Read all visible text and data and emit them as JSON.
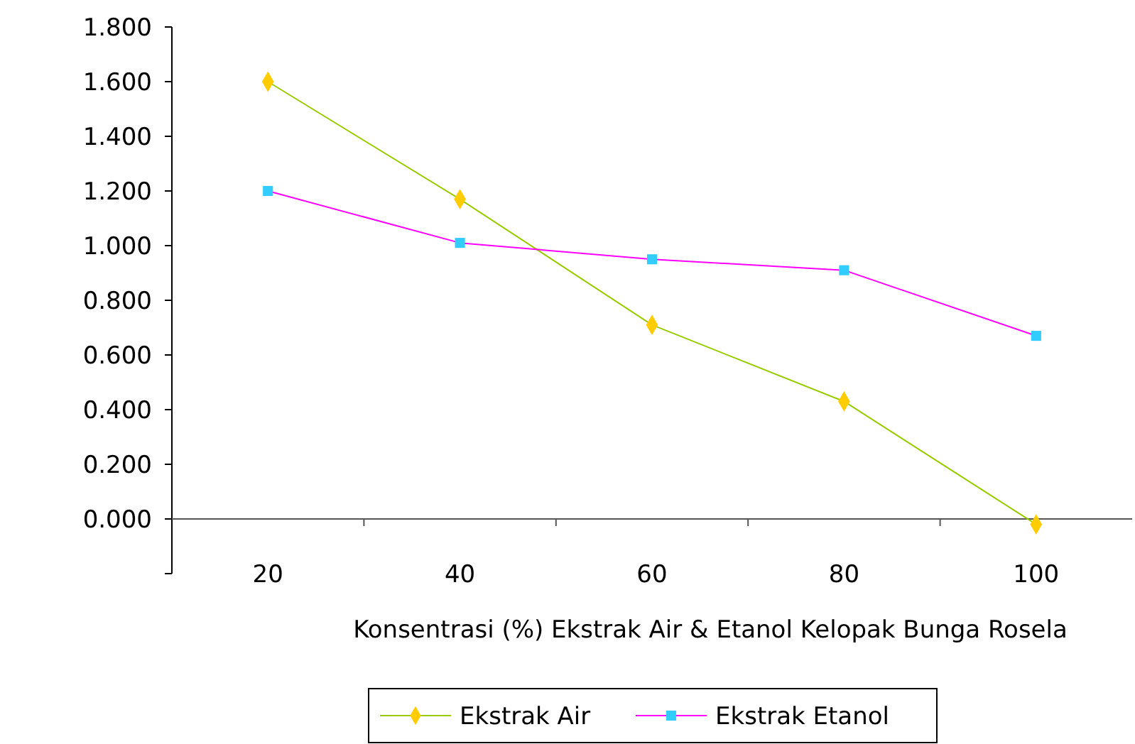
{
  "chart_data": {
    "type": "line",
    "xlabel": "Konsentrasi (%)  Ekstrak Air & Etanol Kelopak Bunga Rosela",
    "categories": [
      "20",
      "40",
      "60",
      "80",
      "100"
    ],
    "series": [
      {
        "name": "Ekstrak Air",
        "color": "#99cc00",
        "colors": [
          "#ffcc00",
          "#ffcc00",
          "#ffcc00",
          "#ffcc00",
          "#ffcc00"
        ],
        "marker": "diamond",
        "values": [
          1.6,
          1.17,
          0.71,
          0.43,
          -0.02
        ]
      },
      {
        "name": "Ekstrak Etanol",
        "color": "#ff00ff",
        "colors": [
          "#33ccff",
          "#33ccff",
          "#33ccff",
          "#33ccff",
          "#33ccff"
        ],
        "marker": "square",
        "values": [
          1.2,
          1.01,
          0.95,
          0.91,
          0.67
        ]
      }
    ],
    "ylim": [
      -0.2,
      1.8
    ],
    "yticks": [
      {
        "value": -0.2,
        "label": null
      },
      {
        "value": 0,
        "label": "0.000"
      },
      {
        "value": 0.2,
        "label": "0.200"
      },
      {
        "value": 0.4,
        "label": "0.400"
      },
      {
        "value": 0.6,
        "label": "0.600"
      },
      {
        "value": 0.8,
        "label": "0.800"
      },
      {
        "value": 1,
        "label": "1.000"
      },
      {
        "value": 1.2,
        "label": "1.200"
      },
      {
        "value": 1.4,
        "label": "1.400"
      },
      {
        "value": 1.6,
        "label": "1.600"
      },
      {
        "value": 1.8,
        "label": "1.800"
      }
    ],
    "legend": "bottom",
    "grid": false
  }
}
